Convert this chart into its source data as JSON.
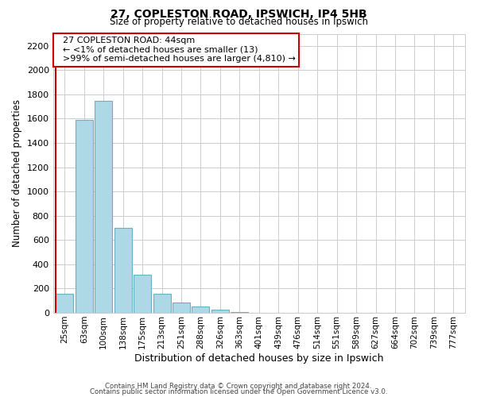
{
  "title": "27, COPLESTON ROAD, IPSWICH, IP4 5HB",
  "subtitle": "Size of property relative to detached houses in Ipswich",
  "xlabel": "Distribution of detached houses by size in Ipswich",
  "ylabel": "Number of detached properties",
  "footnote1": "Contains HM Land Registry data © Crown copyright and database right 2024.",
  "footnote2": "Contains public sector information licensed under the Open Government Licence v3.0.",
  "bar_labels": [
    "25sqm",
    "63sqm",
    "100sqm",
    "138sqm",
    "175sqm",
    "213sqm",
    "251sqm",
    "288sqm",
    "326sqm",
    "363sqm",
    "401sqm",
    "439sqm",
    "476sqm",
    "514sqm",
    "551sqm",
    "589sqm",
    "627sqm",
    "664sqm",
    "702sqm",
    "739sqm",
    "777sqm"
  ],
  "bar_values": [
    160,
    1590,
    1750,
    700,
    315,
    155,
    85,
    50,
    25,
    10,
    0,
    0,
    0,
    0,
    0,
    0,
    0,
    0,
    0,
    0,
    0
  ],
  "highlight_bar_index": 0,
  "bar_color": "#add8e6",
  "bar_edge_color": "#6aaec8",
  "highlight_bar_color": "#ccccdd",
  "highlight_edge_color": "#cc0000",
  "ylim": [
    0,
    2300
  ],
  "yticks": [
    0,
    200,
    400,
    600,
    800,
    1000,
    1200,
    1400,
    1600,
    1800,
    2000,
    2200
  ],
  "annotation_title": "27 COPLESTON ROAD: 44sqm",
  "annotation_line1": "← <1% of detached houses are smaller (13)",
  "annotation_line2": ">99% of semi-detached houses are larger (4,810) →",
  "background_color": "#ffffff",
  "grid_color": "#cccccc",
  "vline_color": "#cc0000",
  "ann_box_edge_color": "#cc0000"
}
